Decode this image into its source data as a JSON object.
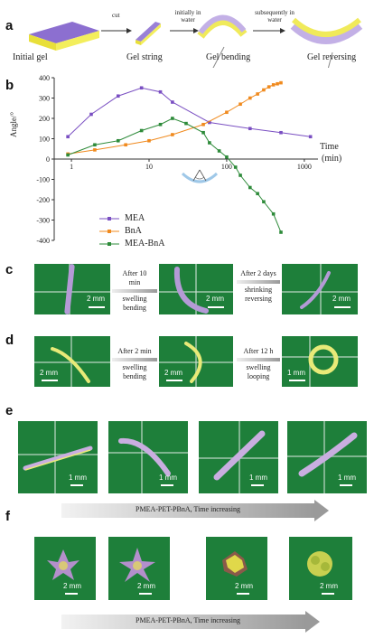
{
  "panels": {
    "a": "a",
    "b": "b",
    "c": "c",
    "d": "d",
    "e": "e",
    "f": "f"
  },
  "panel_a": {
    "labels": [
      "Initial gel",
      "Gel string",
      "Gel bending",
      "Gel reversing"
    ],
    "arrows": [
      "cut",
      "initially in water",
      "subsequently in water"
    ]
  },
  "chart_data": {
    "type": "line",
    "ylabel": "Angle/°",
    "xlabel": "Time (min)",
    "xlabel_line1": "Time",
    "xlabel_line2": "(min)",
    "x_scale": "log",
    "xlim": [
      0.6,
      1500
    ],
    "ylim": [
      -400,
      400
    ],
    "yticks": [
      400,
      300,
      200,
      100,
      0,
      -100,
      -200,
      -300,
      -400
    ],
    "xticks": [
      1,
      10,
      100,
      1000
    ],
    "series": [
      {
        "name": "MEA",
        "color": "#7a4fc2",
        "x": [
          0.9,
          1.8,
          4,
          8,
          14,
          20,
          60,
          200,
          500,
          1200
        ],
        "y": [
          110,
          220,
          310,
          350,
          330,
          280,
          180,
          150,
          130,
          110
        ]
      },
      {
        "name": "BnA",
        "color": "#f08a1e",
        "x": [
          0.9,
          2,
          5,
          10,
          20,
          50,
          100,
          150,
          200,
          250,
          300,
          350,
          400,
          450,
          500
        ],
        "y": [
          25,
          45,
          70,
          90,
          120,
          170,
          230,
          270,
          300,
          320,
          340,
          355,
          365,
          370,
          375
        ]
      },
      {
        "name": "MEA-BnA",
        "color": "#2e8b3a",
        "x": [
          0.9,
          2,
          4,
          8,
          14,
          20,
          30,
          50,
          60,
          80,
          100,
          130,
          150,
          200,
          250,
          300,
          400,
          500
        ],
        "y": [
          20,
          70,
          90,
          140,
          170,
          200,
          175,
          130,
          80,
          40,
          10,
          -40,
          -80,
          -140,
          -170,
          -210,
          -270,
          -360
        ]
      }
    ]
  },
  "panel_c": {
    "arrow1": [
      "After 10",
      "min",
      "swelling",
      "bending"
    ],
    "arrow2": [
      "After 2 days",
      "shrinking",
      "reversing"
    ],
    "scales": [
      "2 mm",
      "2 mm",
      "2 mm"
    ]
  },
  "panel_d": {
    "arrow1": [
      "After 2 min",
      "swelling",
      "bending"
    ],
    "arrow2": [
      "After 12 h",
      "swelling",
      "looping"
    ],
    "scales": [
      "2 mm",
      "2 mm",
      "1 mm"
    ]
  },
  "panel_e": {
    "scales": [
      "1 mm",
      "1 mm",
      "1 mm",
      "1 mm"
    ],
    "caption": "PMEA-PET-PBnA, Time increasing"
  },
  "panel_f": {
    "scales": [
      "2 mm",
      "2 mm",
      "2 mm",
      "2 mm"
    ],
    "caption": "PMEA-PET-PBnA, Time increasing"
  }
}
